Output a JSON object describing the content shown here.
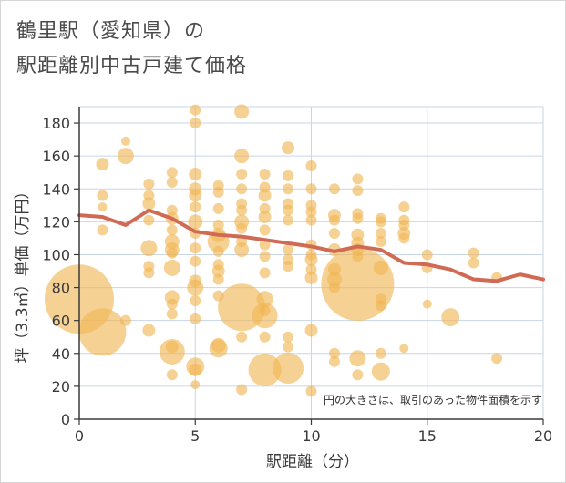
{
  "title_line1": "鶴里駅（愛知県）の",
  "title_line2": "駅距離別中古戸建て価格",
  "note": "円の大きさは、取引のあった物件面積を示す",
  "colors": {
    "bubble": "#f0b553",
    "line": "#d06a55",
    "grid": "#c8d6e6",
    "axis": "#3a3a3a"
  },
  "chart_data": {
    "type": "scatter",
    "xlabel": "駅距離（分）",
    "ylabel": "坪（3.3㎡）単価（万円）",
    "xlim": [
      0,
      20
    ],
    "ylim": [
      0,
      190
    ],
    "xticks": [
      0,
      5,
      10,
      15,
      20
    ],
    "yticks": [
      0,
      20,
      40,
      60,
      80,
      100,
      120,
      140,
      160,
      180
    ],
    "grid": true,
    "bubbles": [
      {
        "x": 0,
        "y": 73,
        "r": 38
      },
      {
        "x": 1,
        "y": 53,
        "r": 26
      },
      {
        "x": 1,
        "y": 155,
        "r": 7
      },
      {
        "x": 1,
        "y": 136,
        "r": 6
      },
      {
        "x": 1,
        "y": 129,
        "r": 5
      },
      {
        "x": 1,
        "y": 115,
        "r": 6
      },
      {
        "x": 2,
        "y": 160,
        "r": 9
      },
      {
        "x": 2,
        "y": 169,
        "r": 5
      },
      {
        "x": 2,
        "y": 60,
        "r": 6
      },
      {
        "x": 3,
        "y": 143,
        "r": 6
      },
      {
        "x": 3,
        "y": 136,
        "r": 6
      },
      {
        "x": 3,
        "y": 131,
        "r": 7
      },
      {
        "x": 3,
        "y": 121,
        "r": 6
      },
      {
        "x": 3,
        "y": 104,
        "r": 9
      },
      {
        "x": 3,
        "y": 93,
        "r": 6
      },
      {
        "x": 3,
        "y": 89,
        "r": 6
      },
      {
        "x": 3,
        "y": 54,
        "r": 7
      },
      {
        "x": 4,
        "y": 150,
        "r": 6
      },
      {
        "x": 4,
        "y": 144,
        "r": 6
      },
      {
        "x": 4,
        "y": 127,
        "r": 6
      },
      {
        "x": 4,
        "y": 122,
        "r": 7
      },
      {
        "x": 4,
        "y": 115,
        "r": 6
      },
      {
        "x": 4,
        "y": 108,
        "r": 8
      },
      {
        "x": 4,
        "y": 103,
        "r": 8
      },
      {
        "x": 4,
        "y": 101,
        "r": 6
      },
      {
        "x": 4,
        "y": 92,
        "r": 9
      },
      {
        "x": 4,
        "y": 74,
        "r": 8
      },
      {
        "x": 4,
        "y": 70,
        "r": 6
      },
      {
        "x": 4,
        "y": 64,
        "r": 6
      },
      {
        "x": 4,
        "y": 44,
        "r": 7
      },
      {
        "x": 4,
        "y": 41,
        "r": 14
      },
      {
        "x": 4,
        "y": 27,
        "r": 6
      },
      {
        "x": 5,
        "y": 188,
        "r": 6
      },
      {
        "x": 5,
        "y": 180,
        "r": 6
      },
      {
        "x": 5,
        "y": 149,
        "r": 7
      },
      {
        "x": 5,
        "y": 140,
        "r": 7
      },
      {
        "x": 5,
        "y": 136,
        "r": 7
      },
      {
        "x": 5,
        "y": 129,
        "r": 6
      },
      {
        "x": 5,
        "y": 120,
        "r": 8
      },
      {
        "x": 5,
        "y": 113,
        "r": 6
      },
      {
        "x": 5,
        "y": 104,
        "r": 6
      },
      {
        "x": 5,
        "y": 96,
        "r": 6
      },
      {
        "x": 5,
        "y": 84,
        "r": 7
      },
      {
        "x": 5,
        "y": 80,
        "r": 9
      },
      {
        "x": 5,
        "y": 72,
        "r": 6
      },
      {
        "x": 5,
        "y": 61,
        "r": 6
      },
      {
        "x": 5,
        "y": 32,
        "r": 10
      },
      {
        "x": 5,
        "y": 30,
        "r": 7
      },
      {
        "x": 5,
        "y": 21,
        "r": 5
      },
      {
        "x": 6,
        "y": 142,
        "r": 6
      },
      {
        "x": 6,
        "y": 138,
        "r": 6
      },
      {
        "x": 6,
        "y": 128,
        "r": 6
      },
      {
        "x": 6,
        "y": 118,
        "r": 6
      },
      {
        "x": 6,
        "y": 112,
        "r": 8
      },
      {
        "x": 6,
        "y": 108,
        "r": 12
      },
      {
        "x": 6,
        "y": 102,
        "r": 6
      },
      {
        "x": 6,
        "y": 94,
        "r": 6
      },
      {
        "x": 6,
        "y": 90,
        "r": 7
      },
      {
        "x": 6,
        "y": 85,
        "r": 6
      },
      {
        "x": 6,
        "y": 75,
        "r": 6
      },
      {
        "x": 6,
        "y": 45,
        "r": 8
      },
      {
        "x": 6,
        "y": 43,
        "r": 10
      },
      {
        "x": 7,
        "y": 187,
        "r": 8
      },
      {
        "x": 7,
        "y": 160,
        "r": 8
      },
      {
        "x": 7,
        "y": 149,
        "r": 6
      },
      {
        "x": 7,
        "y": 140,
        "r": 6
      },
      {
        "x": 7,
        "y": 131,
        "r": 6
      },
      {
        "x": 7,
        "y": 127,
        "r": 6
      },
      {
        "x": 7,
        "y": 120,
        "r": 8
      },
      {
        "x": 7,
        "y": 116,
        "r": 6
      },
      {
        "x": 7,
        "y": 108,
        "r": 6
      },
      {
        "x": 7,
        "y": 103,
        "r": 8
      },
      {
        "x": 7,
        "y": 68,
        "r": 26
      },
      {
        "x": 7,
        "y": 50,
        "r": 6
      },
      {
        "x": 7,
        "y": 18,
        "r": 6
      },
      {
        "x": 8,
        "y": 149,
        "r": 6
      },
      {
        "x": 8,
        "y": 141,
        "r": 6
      },
      {
        "x": 8,
        "y": 136,
        "r": 7
      },
      {
        "x": 8,
        "y": 128,
        "r": 6
      },
      {
        "x": 8,
        "y": 123,
        "r": 7
      },
      {
        "x": 8,
        "y": 115,
        "r": 6
      },
      {
        "x": 8,
        "y": 106,
        "r": 6
      },
      {
        "x": 8,
        "y": 99,
        "r": 6
      },
      {
        "x": 8,
        "y": 89,
        "r": 6
      },
      {
        "x": 8,
        "y": 73,
        "r": 9
      },
      {
        "x": 8,
        "y": 66,
        "r": 6
      },
      {
        "x": 8,
        "y": 63,
        "r": 14
      },
      {
        "x": 8,
        "y": 50,
        "r": 6
      },
      {
        "x": 8,
        "y": 30,
        "r": 18
      },
      {
        "x": 9,
        "y": 165,
        "r": 7
      },
      {
        "x": 9,
        "y": 148,
        "r": 6
      },
      {
        "x": 9,
        "y": 140,
        "r": 6
      },
      {
        "x": 9,
        "y": 131,
        "r": 6
      },
      {
        "x": 9,
        "y": 127,
        "r": 6
      },
      {
        "x": 9,
        "y": 121,
        "r": 6
      },
      {
        "x": 9,
        "y": 103,
        "r": 6
      },
      {
        "x": 9,
        "y": 97,
        "r": 6
      },
      {
        "x": 9,
        "y": 93,
        "r": 6
      },
      {
        "x": 9,
        "y": 50,
        "r": 6
      },
      {
        "x": 9,
        "y": 44,
        "r": 6
      },
      {
        "x": 9,
        "y": 31,
        "r": 17
      },
      {
        "x": 10,
        "y": 154,
        "r": 6
      },
      {
        "x": 10,
        "y": 140,
        "r": 6
      },
      {
        "x": 10,
        "y": 130,
        "r": 6
      },
      {
        "x": 10,
        "y": 126,
        "r": 6
      },
      {
        "x": 10,
        "y": 121,
        "r": 6
      },
      {
        "x": 10,
        "y": 106,
        "r": 6
      },
      {
        "x": 10,
        "y": 100,
        "r": 6
      },
      {
        "x": 10,
        "y": 97,
        "r": 7
      },
      {
        "x": 10,
        "y": 91,
        "r": 6
      },
      {
        "x": 10,
        "y": 86,
        "r": 7
      },
      {
        "x": 10,
        "y": 54,
        "r": 7
      },
      {
        "x": 10,
        "y": 17,
        "r": 6
      },
      {
        "x": 11,
        "y": 140,
        "r": 6
      },
      {
        "x": 11,
        "y": 124,
        "r": 7
      },
      {
        "x": 11,
        "y": 121,
        "r": 6
      },
      {
        "x": 11,
        "y": 113,
        "r": 6
      },
      {
        "x": 11,
        "y": 103,
        "r": 7
      },
      {
        "x": 11,
        "y": 91,
        "r": 7
      },
      {
        "x": 11,
        "y": 85,
        "r": 8
      },
      {
        "x": 11,
        "y": 80,
        "r": 6
      },
      {
        "x": 11,
        "y": 40,
        "r": 6
      },
      {
        "x": 11,
        "y": 35,
        "r": 6
      },
      {
        "x": 12,
        "y": 146,
        "r": 6
      },
      {
        "x": 12,
        "y": 139,
        "r": 6
      },
      {
        "x": 12,
        "y": 125,
        "r": 6
      },
      {
        "x": 12,
        "y": 122,
        "r": 6
      },
      {
        "x": 12,
        "y": 112,
        "r": 7
      },
      {
        "x": 12,
        "y": 107,
        "r": 7
      },
      {
        "x": 12,
        "y": 103,
        "r": 7
      },
      {
        "x": 12,
        "y": 99,
        "r": 6
      },
      {
        "x": 12,
        "y": 82,
        "r": 40
      },
      {
        "x": 12,
        "y": 37,
        "r": 9
      },
      {
        "x": 12,
        "y": 27,
        "r": 6
      },
      {
        "x": 13,
        "y": 122,
        "r": 6
      },
      {
        "x": 13,
        "y": 120,
        "r": 6
      },
      {
        "x": 13,
        "y": 113,
        "r": 6
      },
      {
        "x": 13,
        "y": 108,
        "r": 6
      },
      {
        "x": 13,
        "y": 92,
        "r": 8
      },
      {
        "x": 13,
        "y": 73,
        "r": 6
      },
      {
        "x": 13,
        "y": 69,
        "r": 6
      },
      {
        "x": 13,
        "y": 40,
        "r": 6
      },
      {
        "x": 13,
        "y": 29,
        "r": 10
      },
      {
        "x": 14,
        "y": 129,
        "r": 6
      },
      {
        "x": 14,
        "y": 121,
        "r": 6
      },
      {
        "x": 14,
        "y": 118,
        "r": 6
      },
      {
        "x": 14,
        "y": 113,
        "r": 7
      },
      {
        "x": 14,
        "y": 110,
        "r": 6
      },
      {
        "x": 14,
        "y": 43,
        "r": 5
      },
      {
        "x": 15,
        "y": 100,
        "r": 6
      },
      {
        "x": 15,
        "y": 92,
        "r": 6
      },
      {
        "x": 15,
        "y": 70,
        "r": 5
      },
      {
        "x": 16,
        "y": 62,
        "r": 10
      },
      {
        "x": 17,
        "y": 101,
        "r": 6
      },
      {
        "x": 17,
        "y": 95,
        "r": 6
      },
      {
        "x": 18,
        "y": 86,
        "r": 6
      },
      {
        "x": 18,
        "y": 37,
        "r": 6
      }
    ],
    "average_line": {
      "x": [
        0,
        1,
        2,
        3,
        4,
        5,
        6,
        7,
        8,
        9,
        10,
        11,
        12,
        13,
        14,
        15,
        16,
        17,
        18,
        19,
        20
      ],
      "y": [
        124,
        123,
        118,
        127,
        122,
        114,
        112,
        111,
        109,
        107,
        105,
        102,
        105,
        103,
        95,
        94,
        91,
        85,
        84,
        88,
        85
      ]
    }
  }
}
